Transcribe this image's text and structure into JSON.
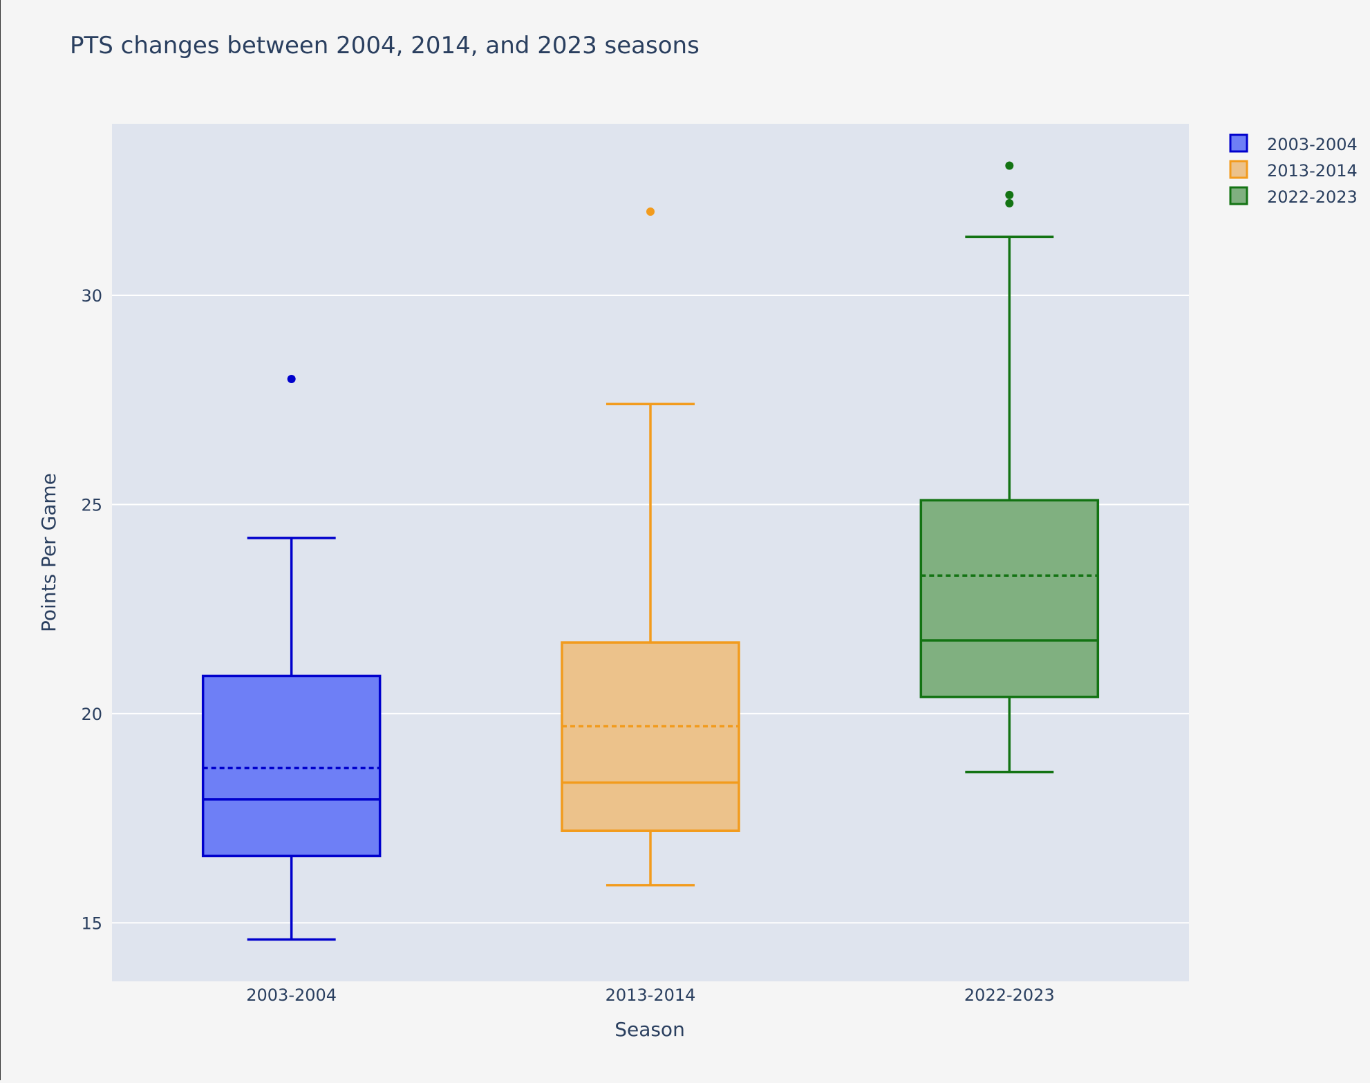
{
  "chart_data": {
    "type": "box",
    "title": "PTS changes between 2004, 2014, and 2023 seasons",
    "xlabel": "Season",
    "ylabel": "Points Per Game",
    "ylim": [
      13.6,
      34.1
    ],
    "yticks": [
      15,
      20,
      25,
      30
    ],
    "categories": [
      "2003-2004",
      "2013-2014",
      "2022-2023"
    ],
    "grid": true,
    "legend_position": "top-right",
    "series": [
      {
        "name": "2003-2004",
        "color": "#0000cc",
        "fill": "#6e7ff6",
        "min": 14.6,
        "q1": 16.6,
        "median": 17.95,
        "q3": 20.9,
        "max": 24.2,
        "mean": 18.7,
        "outliers": [
          28.0
        ]
      },
      {
        "name": "2013-2014",
        "color": "#f29b1d",
        "fill": "#ecc28b",
        "min": 15.9,
        "q1": 17.2,
        "median": 18.35,
        "q3": 21.7,
        "max": 27.4,
        "mean": 19.7,
        "outliers": [
          32.0
        ]
      },
      {
        "name": "2022-2023",
        "color": "#137313",
        "fill": "#80b080",
        "min": 18.6,
        "q1": 20.4,
        "median": 21.75,
        "q3": 25.1,
        "max": 31.4,
        "mean": 23.3,
        "outliers": [
          32.2,
          32.4,
          33.1
        ]
      }
    ]
  },
  "colors": {
    "page_background": "#f5f5f5",
    "plot_background": "#dfe4ee",
    "gridline": "#ffffff",
    "text": "#2a3f5f"
  }
}
